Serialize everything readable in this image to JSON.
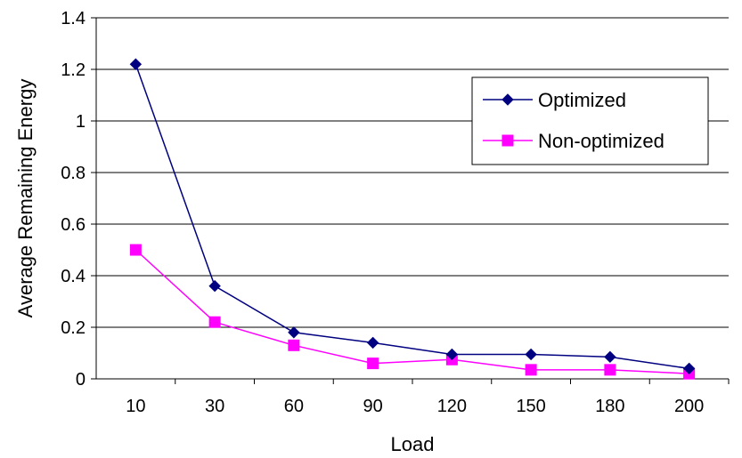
{
  "chart_data": {
    "type": "line",
    "title": "",
    "xlabel": "Load",
    "ylabel": "Average Remaining Energy",
    "categories": [
      "10",
      "30",
      "60",
      "90",
      "120",
      "150",
      "180",
      "200"
    ],
    "ylim": [
      0,
      1.4
    ],
    "yticks": [
      "0",
      "0.2",
      "0.4",
      "0.6",
      "0.8",
      "1",
      "1.2",
      "1.4"
    ],
    "grid": true,
    "legend_position": "top-right",
    "series": [
      {
        "name": "Optimized",
        "values": [
          1.22,
          0.36,
          0.18,
          0.14,
          0.095,
          0.095,
          0.085,
          0.04
        ],
        "color": "#000080",
        "marker": "diamond"
      },
      {
        "name": "Non-optimized",
        "values": [
          0.5,
          0.22,
          0.13,
          0.06,
          0.075,
          0.035,
          0.035,
          0.02
        ],
        "color": "#ff00ff",
        "marker": "square"
      }
    ]
  }
}
